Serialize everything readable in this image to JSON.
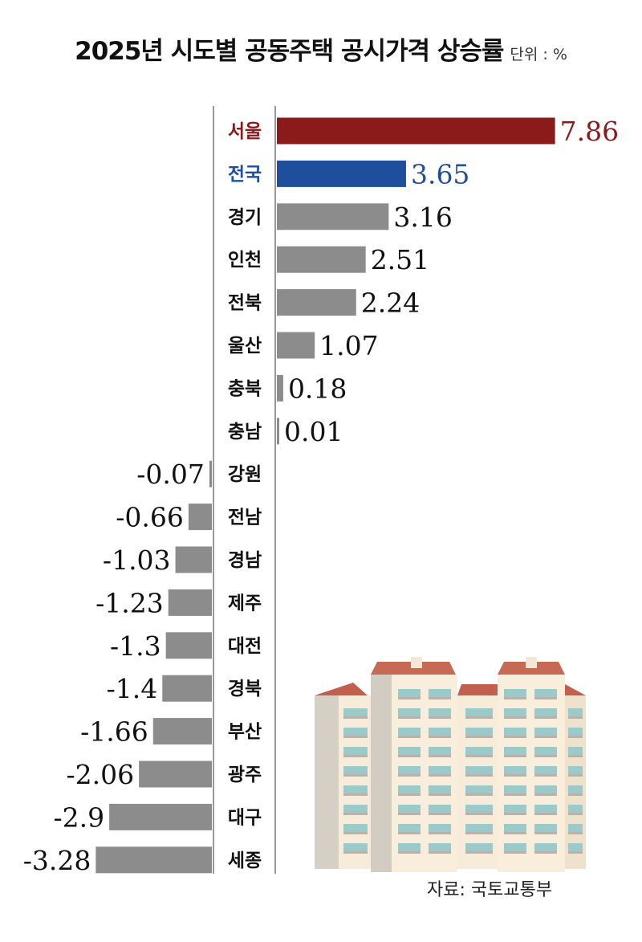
{
  "header": {
    "title": "2025년 시도별 공동주택 공시가격 상승률",
    "unit": "단위 : %"
  },
  "source": "자료: 국토교통부",
  "colors": {
    "seoul": "#8b1a1a",
    "national": "#1f4e9c",
    "default": "#8c8c8c",
    "label_default": "#111111"
  },
  "chart_data": {
    "type": "bar",
    "orientation": "horizontal",
    "categories": [
      "서울",
      "전국",
      "경기",
      "인천",
      "전북",
      "울산",
      "충북",
      "충남",
      "강원",
      "전남",
      "경남",
      "제주",
      "대전",
      "경북",
      "부산",
      "광주",
      "대구",
      "세종"
    ],
    "values": [
      7.86,
      3.65,
      3.16,
      2.51,
      2.24,
      1.07,
      0.18,
      0.01,
      -0.07,
      -0.66,
      -1.03,
      -1.23,
      -1.3,
      -1.4,
      -1.66,
      -2.06,
      -2.9,
      -3.28
    ],
    "value_labels": [
      "7.86",
      "3.65",
      "3.16",
      "2.51",
      "2.24",
      "1.07",
      "0.18",
      "0.01",
      "-0.07",
      "-0.66",
      "-1.03",
      "-1.23",
      "-1.3",
      "-1.4",
      "-1.66",
      "-2.06",
      "-2.9",
      "-3.28"
    ],
    "highlight": {
      "서울": "seoul",
      "전국": "national"
    },
    "title": "2025년 시도별 공동주택 공시가격 상승률",
    "xlabel": "",
    "ylabel": "",
    "unit": "%"
  }
}
